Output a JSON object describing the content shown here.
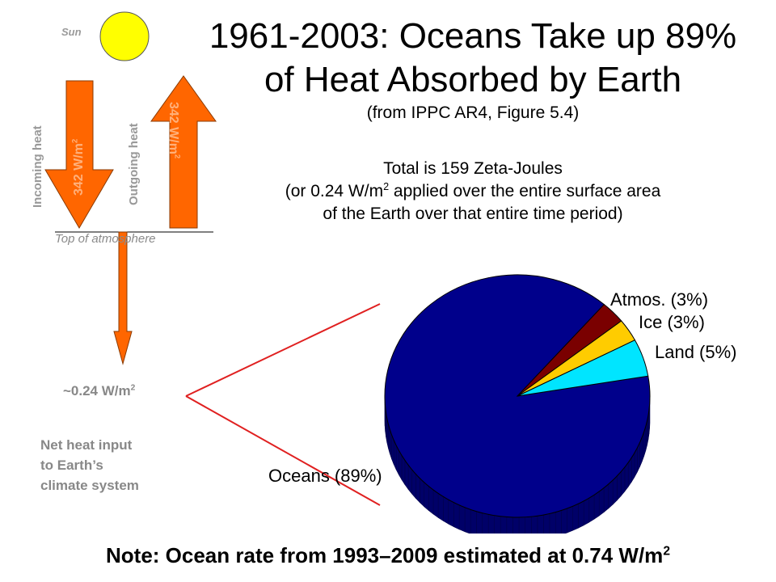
{
  "title_line1": "1961-2003: Oceans Take up 89%",
  "title_line2": "of Heat Absorbed by Earth",
  "subtitle": "(from IPPC AR4, Figure 5.4)",
  "total_line1": "Total is 159 Zeta-Joules",
  "total_line2_pre": "(or 0.24 W/m",
  "total_line2_sup": "2",
  "total_line2_post": " applied over the entire surface area",
  "total_line3": "of the Earth over that entire time period)",
  "diagram": {
    "sun_label": "Sun",
    "incoming_label": "Incoming heat",
    "outgoing_label": "Outgoing heat",
    "incoming_flux": "342 W/m",
    "outgoing_flux": "342 W/m",
    "flux_sup": "2",
    "toa_label": "Top of atmosphere",
    "net_value": "~0.24 W/m",
    "net_sup": "2",
    "net_caption_line1": "Net heat input",
    "net_caption_line2": "to Earth’s",
    "net_caption_line3": "climate system"
  },
  "note_text": "Note: Ocean rate from 1993–2009 estimated at 0.74 W/m",
  "note_sup": "2",
  "colors": {
    "arrow": "#ff6600",
    "sun": "#ffff00",
    "oceans": "#00008b",
    "atmos": "#7a0000",
    "ice": "#ffcc00",
    "land": "#00e5ff",
    "zoom_lines": "#e02020"
  },
  "chart_data": {
    "type": "pie",
    "title": "",
    "categories": [
      "Oceans",
      "Atmos.",
      "Ice",
      "Land"
    ],
    "values": [
      89,
      3,
      3,
      5
    ],
    "labels": [
      "Oceans (89%)",
      "Atmos. (3%)",
      "Ice (3%)",
      "Land (5%)"
    ],
    "colors": [
      "#00008b",
      "#7a0000",
      "#ffcc00",
      "#00e5ff"
    ]
  }
}
